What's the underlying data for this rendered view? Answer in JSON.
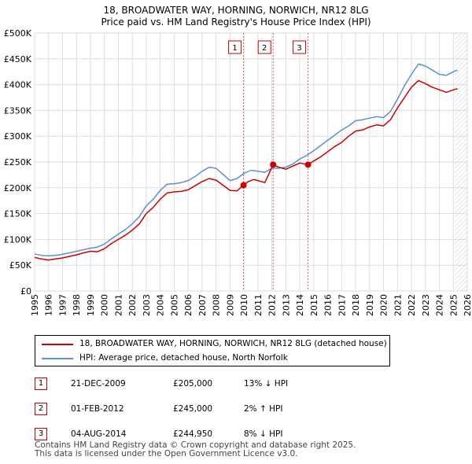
{
  "chart_data": {
    "type": "line",
    "title": "18, BROADWATER WAY, HORNING, NORWICH, NR12 8LG",
    "subtitle": "Price paid vs. HM Land Registry's House Price Index (HPI)",
    "xlabel": "",
    "ylabel": "",
    "xlim": [
      1995,
      2026
    ],
    "ylim": [
      0,
      500000
    ],
    "x_ticks": [
      "1995",
      "1996",
      "1997",
      "1998",
      "1999",
      "2000",
      "2001",
      "2002",
      "2003",
      "2004",
      "2005",
      "2006",
      "2007",
      "2008",
      "2009",
      "2010",
      "2011",
      "2012",
      "2013",
      "2014",
      "2015",
      "2016",
      "2017",
      "2018",
      "2019",
      "2020",
      "2021",
      "2022",
      "2023",
      "2024",
      "2025",
      "2026"
    ],
    "y_ticks": [
      {
        "value": 0,
        "label": "£0"
      },
      {
        "value": 50000,
        "label": "£50K"
      },
      {
        "value": 100000,
        "label": "£100K"
      },
      {
        "value": 150000,
        "label": "£150K"
      },
      {
        "value": 200000,
        "label": "£200K"
      },
      {
        "value": 250000,
        "label": "£250K"
      },
      {
        "value": 300000,
        "label": "£300K"
      },
      {
        "value": 350000,
        "label": "£350K"
      },
      {
        "value": 400000,
        "label": "£400K"
      },
      {
        "value": 450000,
        "label": "£450K"
      },
      {
        "value": 500000,
        "label": "£500K"
      }
    ],
    "forecast_start": 2025.1,
    "series": [
      {
        "name": "18, BROADWATER WAY, HORNING, NORWICH, NR12 8LG (detached house)",
        "color": "#cc0000",
        "points": [
          [
            1995,
            65000
          ],
          [
            1995.5,
            62000
          ],
          [
            1996,
            60000
          ],
          [
            1996.5,
            62000
          ],
          [
            1997,
            64000
          ],
          [
            1997.5,
            67000
          ],
          [
            1998,
            70000
          ],
          [
            1998.5,
            74000
          ],
          [
            1999,
            77000
          ],
          [
            1999.5,
            76000
          ],
          [
            2000,
            82000
          ],
          [
            2000.5,
            92000
          ],
          [
            2001,
            100000
          ],
          [
            2001.5,
            108000
          ],
          [
            2002,
            118000
          ],
          [
            2002.5,
            130000
          ],
          [
            2003,
            150000
          ],
          [
            2003.5,
            162000
          ],
          [
            2004,
            178000
          ],
          [
            2004.5,
            190000
          ],
          [
            2005,
            192000
          ],
          [
            2005.5,
            193000
          ],
          [
            2006,
            196000
          ],
          [
            2006.5,
            204000
          ],
          [
            2007,
            212000
          ],
          [
            2007.5,
            218000
          ],
          [
            2008,
            215000
          ],
          [
            2008.5,
            205000
          ],
          [
            2009,
            195000
          ],
          [
            2009.5,
            194000
          ],
          [
            2009.97,
            205000
          ],
          [
            2010.3,
            212000
          ],
          [
            2010.7,
            216000
          ],
          [
            2011,
            214000
          ],
          [
            2011.5,
            210000
          ],
          [
            2012.09,
            245000
          ],
          [
            2012.5,
            240000
          ],
          [
            2013,
            236000
          ],
          [
            2013.5,
            242000
          ],
          [
            2014,
            248000
          ],
          [
            2014.59,
            244950
          ],
          [
            2015,
            252000
          ],
          [
            2015.5,
            260000
          ],
          [
            2016,
            270000
          ],
          [
            2016.5,
            280000
          ],
          [
            2017,
            288000
          ],
          [
            2017.5,
            300000
          ],
          [
            2018,
            310000
          ],
          [
            2018.5,
            312000
          ],
          [
            2019,
            318000
          ],
          [
            2019.5,
            322000
          ],
          [
            2020,
            320000
          ],
          [
            2020.5,
            332000
          ],
          [
            2021,
            355000
          ],
          [
            2021.5,
            375000
          ],
          [
            2022,
            395000
          ],
          [
            2022.5,
            408000
          ],
          [
            2023,
            402000
          ],
          [
            2023.5,
            395000
          ],
          [
            2024,
            390000
          ],
          [
            2024.5,
            385000
          ],
          [
            2025,
            390000
          ],
          [
            2025.3,
            392000
          ]
        ]
      },
      {
        "name": "HPI: Average price, detached house, North Norfolk",
        "color": "#5b8fd4",
        "points": [
          [
            1995,
            72000
          ],
          [
            1995.5,
            69000
          ],
          [
            1996,
            68000
          ],
          [
            1996.5,
            69000
          ],
          [
            1997,
            71000
          ],
          [
            1997.5,
            74000
          ],
          [
            1998,
            77000
          ],
          [
            1998.5,
            80000
          ],
          [
            1999,
            83000
          ],
          [
            1999.5,
            85000
          ],
          [
            2000,
            91000
          ],
          [
            2000.5,
            101000
          ],
          [
            2001,
            110000
          ],
          [
            2001.5,
            119000
          ],
          [
            2002,
            130000
          ],
          [
            2002.5,
            144000
          ],
          [
            2003,
            165000
          ],
          [
            2003.5,
            178000
          ],
          [
            2004,
            195000
          ],
          [
            2004.5,
            207000
          ],
          [
            2005,
            208000
          ],
          [
            2005.5,
            210000
          ],
          [
            2006,
            214000
          ],
          [
            2006.5,
            222000
          ],
          [
            2007,
            232000
          ],
          [
            2007.5,
            240000
          ],
          [
            2008,
            238000
          ],
          [
            2008.5,
            226000
          ],
          [
            2009,
            214000
          ],
          [
            2009.5,
            218000
          ],
          [
            2010,
            228000
          ],
          [
            2010.5,
            234000
          ],
          [
            2011,
            232000
          ],
          [
            2011.5,
            230000
          ],
          [
            2012,
            238000
          ],
          [
            2012.5,
            238000
          ],
          [
            2013,
            240000
          ],
          [
            2013.5,
            246000
          ],
          [
            2014,
            256000
          ],
          [
            2014.5,
            263000
          ],
          [
            2015,
            272000
          ],
          [
            2015.5,
            282000
          ],
          [
            2016,
            292000
          ],
          [
            2016.5,
            302000
          ],
          [
            2017,
            312000
          ],
          [
            2017.5,
            320000
          ],
          [
            2018,
            330000
          ],
          [
            2018.5,
            332000
          ],
          [
            2019,
            335000
          ],
          [
            2019.5,
            338000
          ],
          [
            2020,
            336000
          ],
          [
            2020.5,
            348000
          ],
          [
            2021,
            372000
          ],
          [
            2021.5,
            398000
          ],
          [
            2022,
            420000
          ],
          [
            2022.5,
            440000
          ],
          [
            2023,
            436000
          ],
          [
            2023.5,
            428000
          ],
          [
            2024,
            420000
          ],
          [
            2024.5,
            418000
          ],
          [
            2025,
            425000
          ],
          [
            2025.3,
            428000
          ]
        ]
      }
    ],
    "sales": [
      {
        "n": "1",
        "date": "21-DEC-2009",
        "x": 2009.97,
        "price_value": 205000,
        "price": "£205,000",
        "hpi": "13% ↓ HPI"
      },
      {
        "n": "2",
        "date": "01-FEB-2012",
        "x": 2012.09,
        "price_value": 245000,
        "price": "£245,000",
        "hpi": "2% ↑ HPI"
      },
      {
        "n": "3",
        "date": "04-AUG-2014",
        "x": 2014.59,
        "price_value": 244950,
        "price": "£244,950",
        "hpi": "8% ↓ HPI"
      }
    ]
  },
  "legend": {
    "property": "18, BROADWATER WAY, HORNING, NORWICH, NR12 8LG (detached house)",
    "hpi": "HPI: Average price, detached house, North Norfolk"
  },
  "footer": {
    "line1": "Contains HM Land Registry data © Crown copyright and database right 2025.",
    "line2": "This data is licensed under the Open Government Licence v3.0."
  },
  "colors": {
    "property_line": "#cc0000",
    "hpi_line": "#5b8fd4",
    "marker_border": "#cc0000",
    "grid": "#dddddd"
  }
}
